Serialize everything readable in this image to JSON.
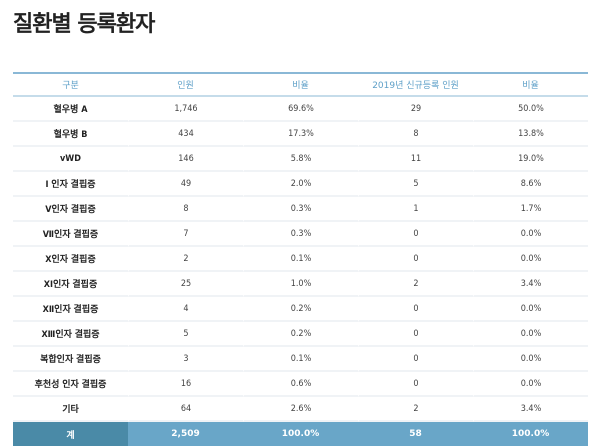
{
  "page": {
    "title": "질환별 등록환자"
  },
  "table": {
    "headers": [
      "구분",
      "인원",
      "비율",
      "2019년 신규등록 인원",
      "비율"
    ],
    "rows": [
      [
        "혈우병 A",
        "1,746",
        "69.6%",
        "29",
        "50.0%"
      ],
      [
        "혈우병 B",
        "434",
        "17.3%",
        "8",
        "13.8%"
      ],
      [
        "vWD",
        "146",
        "5.8%",
        "11",
        "19.0%"
      ],
      [
        "Ⅰ 인자 결핍증",
        "49",
        "2.0%",
        "5",
        "8.6%"
      ],
      [
        "Ⅴ인자 결핍증",
        "8",
        "0.3%",
        "1",
        "1.7%"
      ],
      [
        "Ⅶ인자 결핍증",
        "7",
        "0.3%",
        "0",
        "0.0%"
      ],
      [
        "Ⅹ인자 결핍증",
        "2",
        "0.1%",
        "0",
        "0.0%"
      ],
      [
        "ⅩⅠ인자 결핍증",
        "25",
        "1.0%",
        "2",
        "3.4%"
      ],
      [
        "ⅩⅡ인자 결핍증",
        "4",
        "0.2%",
        "0",
        "0.0%"
      ],
      [
        "ⅩⅢ인자 결핍증",
        "5",
        "0.2%",
        "0",
        "0.0%"
      ],
      [
        "복합인자 결핍증",
        "3",
        "0.1%",
        "0",
        "0.0%"
      ],
      [
        "후천성 인자 결핍증",
        "16",
        "0.6%",
        "0",
        "0.0%"
      ],
      [
        "기타",
        "64",
        "2.6%",
        "2",
        "3.4%"
      ]
    ],
    "total": [
      "계",
      "2,509",
      "100.0%",
      "58",
      "100.0%"
    ]
  },
  "colors": {
    "header_text": "#5fa0c8",
    "header_border": "#8ab8d6",
    "footer_label_bg": "#4a8aa7",
    "footer_bg": "#69a6c8"
  }
}
